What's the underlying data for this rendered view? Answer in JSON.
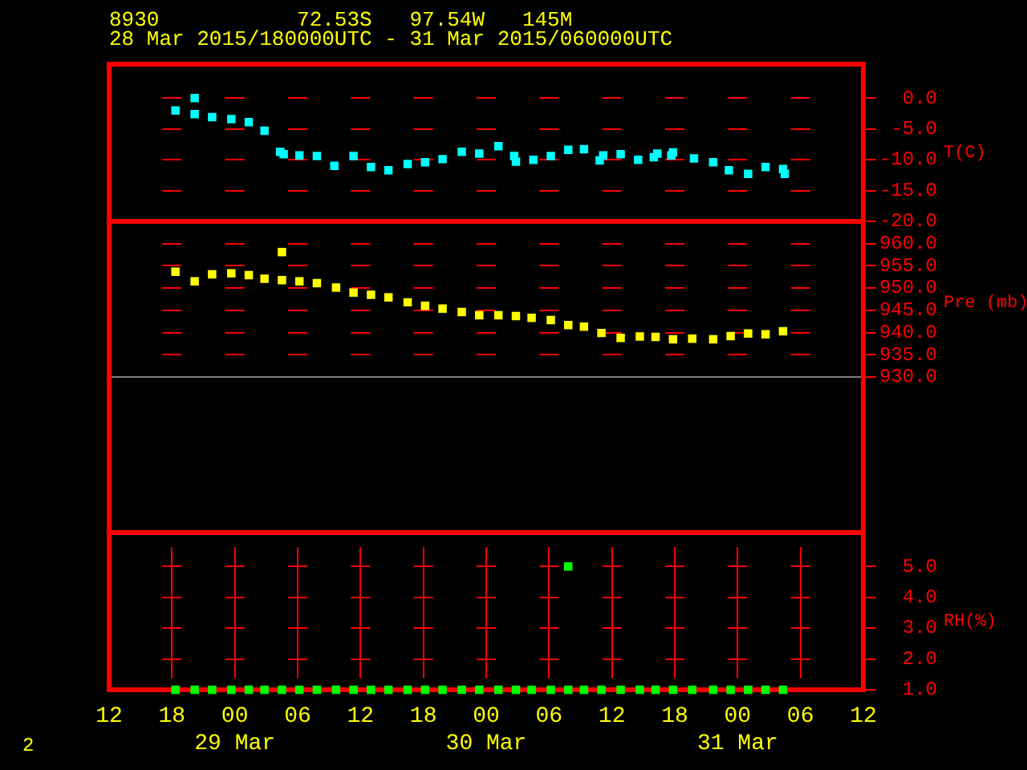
{
  "chart_data": [
    {
      "type": "scatter",
      "title": "8930           72.53S   97.54W   145M",
      "subtitle": "28 Mar 2015/180000UTC - 31 Mar 2015/060000UTC",
      "ylabel": "T(C)",
      "color": "#00ffff",
      "marker": "square",
      "grid": true,
      "tick_labels": "y",
      "xlim": [
        "2015-03-28T12:00",
        "2015-03-31T12:00"
      ],
      "xticks": [
        {
          "value": "2015-03-28T12:00",
          "label": null
        },
        {
          "value": "2015-03-28T18:00",
          "label": null
        },
        {
          "value": "2015-03-29T00:00",
          "label": null
        },
        {
          "value": "2015-03-29T06:00",
          "label": null
        },
        {
          "value": "2015-03-29T12:00",
          "label": null
        },
        {
          "value": "2015-03-29T18:00",
          "label": null
        },
        {
          "value": "2015-03-30T00:00",
          "label": null
        },
        {
          "value": "2015-03-30T06:00",
          "label": null
        },
        {
          "value": "2015-03-30T12:00",
          "label": null
        },
        {
          "value": "2015-03-30T18:00",
          "label": null
        },
        {
          "value": "2015-03-31T00:00",
          "label": null
        },
        {
          "value": "2015-03-31T06:00",
          "label": null
        },
        {
          "value": "2015-03-31T12:00",
          "label": null
        }
      ],
      "ylim": [
        -20,
        5.5
      ],
      "yticks": [
        {
          "value": 0,
          "label": "0.0"
        },
        {
          "value": -5,
          "label": "-5.0"
        },
        {
          "value": -10,
          "label": "-10.0"
        },
        {
          "value": -15,
          "label": "-15.0"
        },
        {
          "value": -20,
          "label": "-20.0"
        }
      ],
      "x": [
        "2015-03-28T18:20",
        "2015-03-28T20:10",
        "2015-03-28T20:10",
        "2015-03-28T21:50",
        "2015-03-28T23:40",
        "2015-03-29T01:20",
        "2015-03-29T02:50",
        "2015-03-29T04:20",
        "2015-03-29T04:40",
        "2015-03-29T06:10",
        "2015-03-29T07:50",
        "2015-03-29T09:30",
        "2015-03-29T11:20",
        "2015-03-29T13:00",
        "2015-03-29T14:40",
        "2015-03-29T16:30",
        "2015-03-29T18:10",
        "2015-03-29T19:50",
        "2015-03-29T21:40",
        "2015-03-29T23:20",
        "2015-03-30T01:10",
        "2015-03-30T02:40",
        "2015-03-30T02:50",
        "2015-03-30T04:30",
        "2015-03-30T06:10",
        "2015-03-30T07:50",
        "2015-03-30T09:20",
        "2015-03-30T10:50",
        "2015-03-30T11:10",
        "2015-03-30T12:50",
        "2015-03-30T14:30",
        "2015-03-30T16:00",
        "2015-03-30T16:20",
        "2015-03-30T17:40",
        "2015-03-30T17:50",
        "2015-03-30T19:50",
        "2015-03-30T21:40",
        "2015-03-30T23:10",
        "2015-03-31T01:00",
        "2015-03-31T02:40",
        "2015-03-31T04:20",
        "2015-03-31T04:30"
      ],
      "values": [
        -2.0,
        0.0,
        -2.6,
        -3.1,
        -3.4,
        -3.9,
        -5.3,
        -8.7,
        -9.1,
        -9.3,
        -9.4,
        -11.0,
        -9.4,
        -11.2,
        -11.7,
        -10.7,
        -10.4,
        -9.9,
        -8.7,
        -9.0,
        -7.8,
        -9.4,
        -10.3,
        -10.0,
        -9.4,
        -8.4,
        -8.3,
        -10.1,
        -9.3,
        -9.1,
        -10.0,
        -9.6,
        -9.0,
        -9.3,
        -8.8,
        -9.8,
        -10.4,
        -11.7,
        -12.3,
        -11.2,
        -11.5,
        -12.3
      ]
    },
    {
      "type": "scatter",
      "ylabel": "Pre (mb)",
      "color": "#ffff00",
      "marker": "square",
      "grid": true,
      "tick_labels": "y",
      "xlim": [
        "2015-03-28T12:00",
        "2015-03-31T12:00"
      ],
      "xticks": [
        {
          "value": "2015-03-28T12:00",
          "label": null
        },
        {
          "value": "2015-03-28T18:00",
          "label": null
        },
        {
          "value": "2015-03-29T00:00",
          "label": null
        },
        {
          "value": "2015-03-29T06:00",
          "label": null
        },
        {
          "value": "2015-03-29T12:00",
          "label": null
        },
        {
          "value": "2015-03-29T18:00",
          "label": null
        },
        {
          "value": "2015-03-30T00:00",
          "label": null
        },
        {
          "value": "2015-03-30T06:00",
          "label": null
        },
        {
          "value": "2015-03-30T12:00",
          "label": null
        },
        {
          "value": "2015-03-30T18:00",
          "label": null
        },
        {
          "value": "2015-03-31T00:00",
          "label": null
        },
        {
          "value": "2015-03-31T06:00",
          "label": null
        },
        {
          "value": "2015-03-31T12:00",
          "label": null
        }
      ],
      "ylim": [
        895,
        965
      ],
      "yticks": [
        {
          "value": 960,
          "label": "960.0"
        },
        {
          "value": 955,
          "label": "955.0"
        },
        {
          "value": 950,
          "label": "950.0"
        },
        {
          "value": 945,
          "label": "945.0"
        },
        {
          "value": 940,
          "label": "940.0"
        },
        {
          "value": 935,
          "label": "935.0"
        },
        {
          "value": 930,
          "label": "930.0"
        }
      ],
      "ref_lines": [
        {
          "axis": "y",
          "value": 930,
          "color": "#808080"
        }
      ],
      "x": [
        "2015-03-28T18:20",
        "2015-03-28T20:10",
        "2015-03-28T21:50",
        "2015-03-28T23:40",
        "2015-03-29T01:20",
        "2015-03-29T02:50",
        "2015-03-29T04:30",
        "2015-03-29T04:30",
        "2015-03-29T06:10",
        "2015-03-29T07:50",
        "2015-03-29T09:40",
        "2015-03-29T11:20",
        "2015-03-29T13:00",
        "2015-03-29T14:40",
        "2015-03-29T16:30",
        "2015-03-29T18:10",
        "2015-03-29T19:50",
        "2015-03-29T21:40",
        "2015-03-29T23:20",
        "2015-03-30T01:10",
        "2015-03-30T02:50",
        "2015-03-30T04:20",
        "2015-03-30T06:10",
        "2015-03-30T07:50",
        "2015-03-30T09:20",
        "2015-03-30T11:00",
        "2015-03-30T12:50",
        "2015-03-30T14:40",
        "2015-03-30T16:10",
        "2015-03-30T17:50",
        "2015-03-30T19:40",
        "2015-03-30T21:40",
        "2015-03-30T23:20",
        "2015-03-31T01:00",
        "2015-03-31T02:40",
        "2015-03-31T04:20"
      ],
      "values": [
        953.7,
        951.5,
        953.1,
        953.3,
        952.9,
        952.1,
        958.1,
        951.8,
        951.5,
        951.1,
        950.1,
        949.0,
        948.5,
        947.9,
        946.8,
        946.0,
        945.4,
        944.6,
        943.9,
        943.9,
        943.7,
        943.3,
        942.8,
        941.7,
        941.3,
        939.9,
        938.8,
        939.1,
        939.0,
        938.5,
        938.6,
        938.5,
        939.2,
        939.8,
        939.6,
        940.3
      ]
    },
    {
      "type": "scatter",
      "ylabel": "RH(%)",
      "color": "#00ff00",
      "marker": "square",
      "grid": true,
      "annotations": [
        "2"
      ],
      "xlim": [
        "2015-03-28T12:00",
        "2015-03-31T12:00"
      ],
      "xticks": [
        {
          "value": "2015-03-28T12:00",
          "label": "12"
        },
        {
          "value": "2015-03-28T18:00",
          "label": "18"
        },
        {
          "value": "2015-03-29T00:00",
          "label": "00\n29 Mar"
        },
        {
          "value": "2015-03-29T06:00",
          "label": "06"
        },
        {
          "value": "2015-03-29T12:00",
          "label": "12"
        },
        {
          "value": "2015-03-29T18:00",
          "label": "18"
        },
        {
          "value": "2015-03-30T00:00",
          "label": "00\n30 Mar"
        },
        {
          "value": "2015-03-30T06:00",
          "label": "06"
        },
        {
          "value": "2015-03-30T12:00",
          "label": "12"
        },
        {
          "value": "2015-03-30T18:00",
          "label": "18"
        },
        {
          "value": "2015-03-31T00:00",
          "label": "00\n31 Mar"
        },
        {
          "value": "2015-03-31T06:00",
          "label": "06"
        },
        {
          "value": "2015-03-31T12:00",
          "label": "12"
        }
      ],
      "ylim": [
        1,
        6.1
      ],
      "yticks": [
        {
          "value": 5,
          "label": "5.0"
        },
        {
          "value": 4,
          "label": "4.0"
        },
        {
          "value": 3,
          "label": "3.0"
        },
        {
          "value": 2,
          "label": "2.0"
        },
        {
          "value": 1,
          "label": "1.0"
        }
      ],
      "x": [
        "2015-03-28T18:20",
        "2015-03-28T20:10",
        "2015-03-28T21:50",
        "2015-03-28T23:40",
        "2015-03-29T01:20",
        "2015-03-29T02:50",
        "2015-03-29T04:30",
        "2015-03-29T06:10",
        "2015-03-29T07:50",
        "2015-03-29T09:40",
        "2015-03-29T11:20",
        "2015-03-29T13:00",
        "2015-03-29T14:40",
        "2015-03-29T16:30",
        "2015-03-29T18:10",
        "2015-03-29T19:50",
        "2015-03-29T21:40",
        "2015-03-29T23:20",
        "2015-03-30T01:10",
        "2015-03-30T02:50",
        "2015-03-30T04:20",
        "2015-03-30T06:10",
        "2015-03-30T07:50",
        "2015-03-30T07:50",
        "2015-03-30T09:20",
        "2015-03-30T11:00",
        "2015-03-30T12:50",
        "2015-03-30T14:40",
        "2015-03-30T16:10",
        "2015-03-30T17:50",
        "2015-03-30T19:40",
        "2015-03-30T21:40",
        "2015-03-30T23:20",
        "2015-03-31T01:00",
        "2015-03-31T02:40",
        "2015-03-31T04:20"
      ],
      "values": [
        1.0,
        1.0,
        1.0,
        1.0,
        1.0,
        1.0,
        1.0,
        1.0,
        1.0,
        1.0,
        1.0,
        1.0,
        1.0,
        1.0,
        1.0,
        1.0,
        1.0,
        1.0,
        1.0,
        1.0,
        1.0,
        1.0,
        1.0,
        5.0,
        1.0,
        1.0,
        1.0,
        1.0,
        1.0,
        1.0,
        1.0,
        1.0,
        1.0,
        1.0,
        1.0,
        1.0
      ]
    }
  ]
}
